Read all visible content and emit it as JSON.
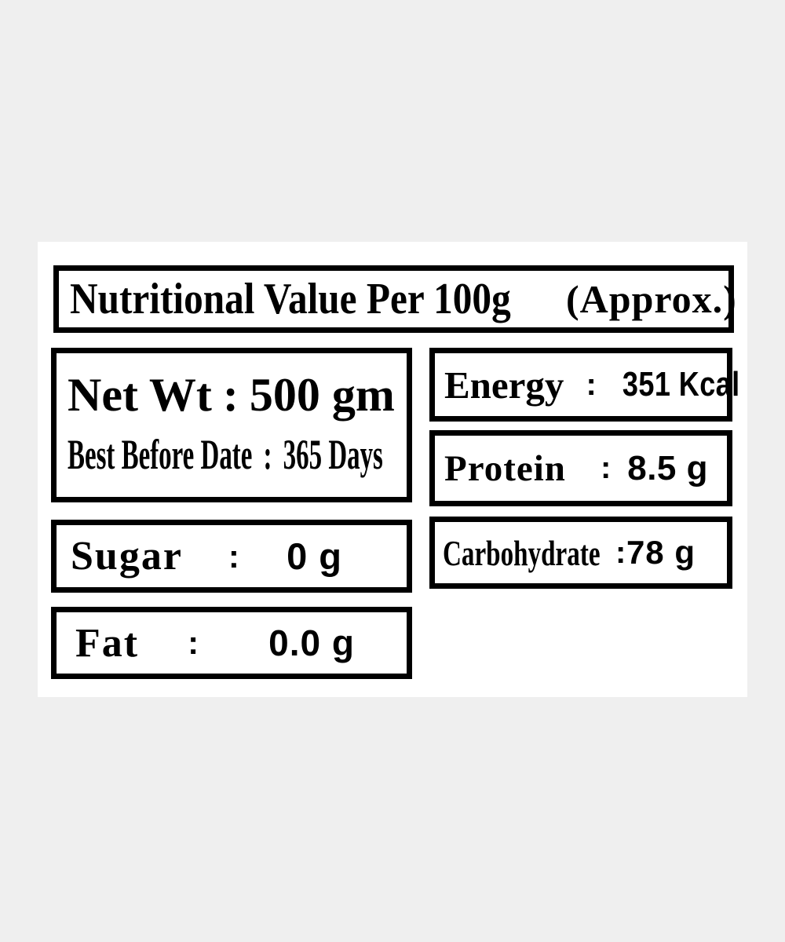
{
  "page": {
    "background_color": "#efefef",
    "panel_color": "#ffffff",
    "border_color": "#000000",
    "text_color": "#000000"
  },
  "label": {
    "header": {
      "title": "Nutritional Value Per 100g",
      "suffix": "(Approx.)"
    },
    "net_weight": {
      "name": "Net Wt",
      "colon": ":",
      "value": "500 gm"
    },
    "best_before": {
      "name": "Best Before Date",
      "colon": ":",
      "value": "365 Days"
    },
    "sugar": {
      "name": "Sugar",
      "colon": ":",
      "value": "0 g"
    },
    "fat": {
      "name": "Fat",
      "colon": ":",
      "value": "0.0 g"
    },
    "energy": {
      "name": "Energy",
      "colon": ":",
      "value": "351 Kcal"
    },
    "protein": {
      "name": "Protein",
      "colon": ":",
      "value": "8.5 g"
    },
    "carbohydrate": {
      "name": "Carbohydrate",
      "colon": ":",
      "value": "78 g"
    }
  }
}
